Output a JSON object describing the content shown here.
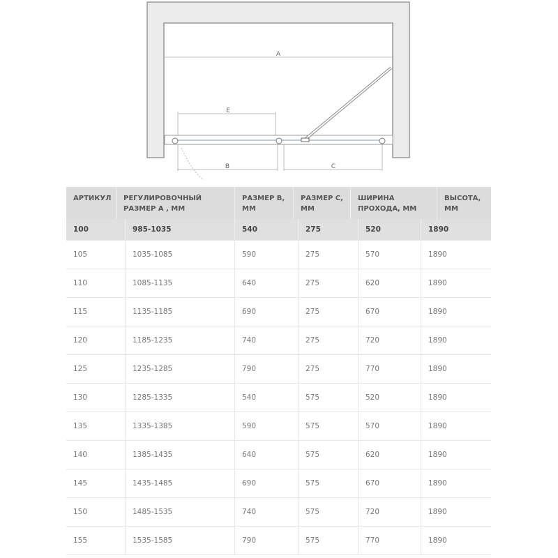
{
  "diagram": {
    "labels": {
      "a": "A",
      "b": "B",
      "c": "C",
      "e": "E"
    }
  },
  "table": {
    "headers": [
      "АРТИКУЛ",
      "РЕГУЛИРОВОЧНЫЙ РАЗМЕР А , ММ",
      "РАЗМЕР B, ММ",
      "РАЗМЕР С, ММ",
      "ШИРИНА ПРОХОДА, ММ",
      "ВЫСОТА, ММ"
    ],
    "rows": [
      [
        "100",
        "985-1035",
        "540",
        "275",
        "520",
        "1890"
      ],
      [
        "105",
        "1035-1085",
        "590",
        "275",
        "570",
        "1890"
      ],
      [
        "110",
        "1085-1135",
        "640",
        "275",
        "620",
        "1890"
      ],
      [
        "115",
        "1135-1185",
        "690",
        "275",
        "670",
        "1890"
      ],
      [
        "120",
        "1185-1235",
        "740",
        "275",
        "720",
        "1890"
      ],
      [
        "125",
        "1235-1285",
        "790",
        "275",
        "770",
        "1890"
      ],
      [
        "130",
        "1285-1335",
        "540",
        "575",
        "520",
        "1890"
      ],
      [
        "135",
        "1335-1385",
        "590",
        "575",
        "570",
        "1890"
      ],
      [
        "140",
        "1385-1435",
        "640",
        "575",
        "620",
        "1890"
      ],
      [
        "145",
        "1435-1485",
        "690",
        "575",
        "670",
        "1890"
      ],
      [
        "150",
        "1485-1535",
        "740",
        "575",
        "720",
        "1890"
      ],
      [
        "155",
        "1535-1585",
        "790",
        "575",
        "770",
        "1890"
      ]
    ]
  }
}
